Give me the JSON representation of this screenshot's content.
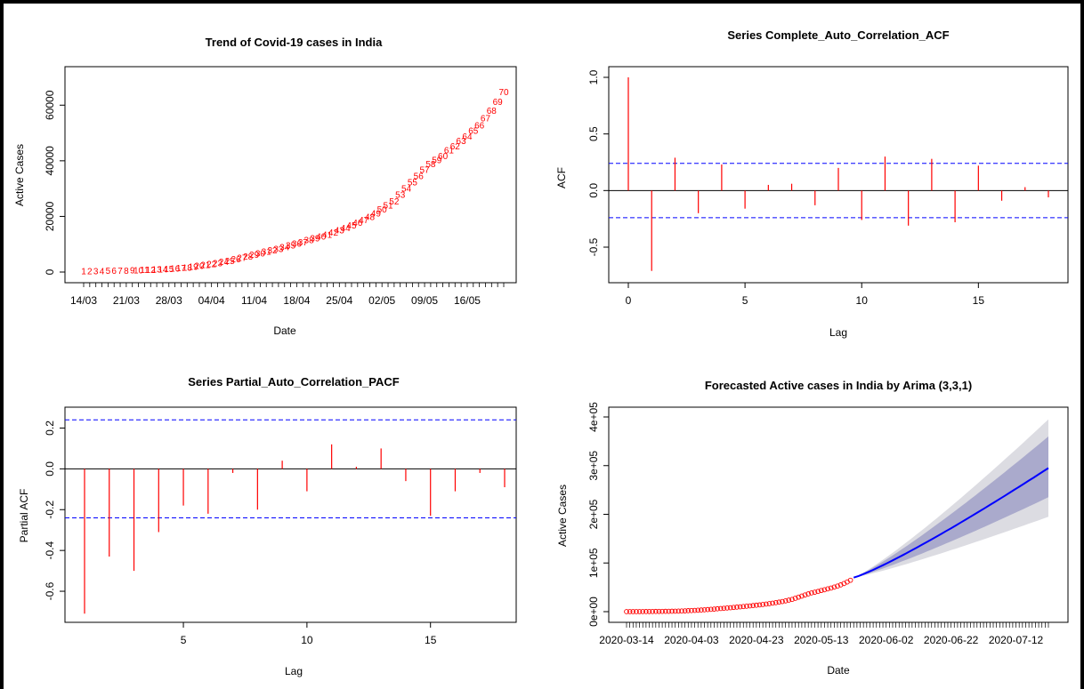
{
  "chart_data": [
    {
      "type": "scatter",
      "title": "Trend of Covid-19 cases in India",
      "xlabel": "Date",
      "ylabel": "Active Cases",
      "point_color": "#ff0000",
      "point_labels": [
        "1",
        "2",
        "3",
        "4",
        "5",
        "6",
        "7",
        "8",
        "9",
        "10",
        "11",
        "12",
        "13",
        "14",
        "15",
        "16",
        "17",
        "18",
        "19",
        "20",
        "21",
        "22",
        "23",
        "24",
        "25",
        "26",
        "27",
        "28",
        "29",
        "30",
        "31",
        "32",
        "33",
        "34",
        "35",
        "36",
        "37",
        "38",
        "39",
        "40",
        "41",
        "42",
        "43",
        "44",
        "45",
        "46",
        "47",
        "48",
        "49",
        "50",
        "51",
        "52",
        "53",
        "54",
        "55",
        "56",
        "57",
        "58",
        "59",
        "60",
        "61",
        "62",
        "63",
        "64",
        "65",
        "66",
        "67",
        "68",
        "69",
        "70"
      ],
      "x_start_date": "2020-03-14",
      "x_ticks": [
        "14/03",
        "21/03",
        "28/03",
        "04/04",
        "11/04",
        "18/04",
        "25/04",
        "02/05",
        "09/05",
        "16/05"
      ],
      "y_ticks": [
        "0",
        "20000",
        "40000",
        "60000"
      ],
      "y_tick_values": [
        0,
        20000,
        40000,
        60000
      ],
      "ylim": [
        0,
        70000
      ],
      "values": [
        84,
        90,
        100,
        110,
        126,
        150,
        200,
        260,
        330,
        400,
        480,
        560,
        650,
        750,
        860,
        1000,
        1150,
        1350,
        1650,
        2000,
        2300,
        2600,
        3000,
        3400,
        3800,
        4300,
        4800,
        5300,
        5900,
        6500,
        7000,
        7600,
        8100,
        8700,
        9300,
        9900,
        10500,
        11200,
        11800,
        12500,
        13200,
        13900,
        14700,
        15600,
        16500,
        17500,
        18500,
        19600,
        20800,
        22200,
        23700,
        25200,
        27500,
        29800,
        32000,
        34300,
        36500,
        38500,
        40000,
        41500,
        43500,
        45000,
        46800,
        48500,
        50500,
        52500,
        55000,
        57800,
        61000,
        64500
      ]
    },
    {
      "type": "bar",
      "title": "Series  Complete_Auto_Correlation_ACF",
      "xlabel": "Lag",
      "ylabel": "ACF",
      "bar_color": "#ff0000",
      "ci_color": "#0000ff",
      "ci": 0.24,
      "ylim": [
        -0.72,
        1.0
      ],
      "x_ticks": [
        "0",
        "5",
        "10",
        "15"
      ],
      "x_tick_values": [
        0,
        5,
        10,
        15
      ],
      "y_ticks": [
        "-0.5",
        "0.0",
        "0.5",
        "1.0"
      ],
      "y_tick_values": [
        -0.5,
        0.0,
        0.5,
        1.0
      ],
      "x": [
        0,
        1,
        2,
        3,
        4,
        5,
        6,
        7,
        8,
        9,
        10,
        11,
        12,
        13,
        14,
        15,
        16,
        17,
        18
      ],
      "values": [
        1.0,
        -0.71,
        0.29,
        -0.2,
        0.23,
        -0.16,
        0.05,
        0.06,
        -0.13,
        0.2,
        -0.26,
        0.3,
        -0.31,
        0.28,
        -0.28,
        0.22,
        -0.09,
        0.03,
        -0.06
      ]
    },
    {
      "type": "bar",
      "title": "Series  Partial_Auto_Correlation_PACF",
      "xlabel": "Lag",
      "ylabel": "Partial ACF",
      "bar_color": "#ff0000",
      "ci_color": "#0000ff",
      "ci": 0.24,
      "ylim": [
        -0.7,
        0.25
      ],
      "x_ticks": [
        "5",
        "10",
        "15"
      ],
      "x_tick_values": [
        5,
        10,
        15
      ],
      "y_ticks": [
        "-0.6",
        "-0.4",
        "-0.2",
        "0.0",
        "0.2"
      ],
      "y_tick_values": [
        -0.6,
        -0.4,
        -0.2,
        0.0,
        0.2
      ],
      "x": [
        1,
        2,
        3,
        4,
        5,
        6,
        7,
        8,
        9,
        10,
        11,
        12,
        13,
        14,
        15,
        16,
        17,
        18
      ],
      "values": [
        -0.71,
        -0.43,
        -0.5,
        -0.31,
        -0.18,
        -0.22,
        -0.02,
        -0.2,
        0.04,
        -0.11,
        0.12,
        0.01,
        0.1,
        -0.06,
        -0.23,
        -0.11,
        -0.02,
        -0.09
      ]
    },
    {
      "type": "line",
      "title": "Forecasted Active cases in India by Arima (3,3,1)",
      "xlabel": "Date",
      "ylabel": "Active Cases",
      "observed_color": "#ff0000",
      "forecast_color": "#0000ff",
      "band80_color": "#aaaacc",
      "band95_color": "#dcdce2",
      "x_ticks": [
        "2020-03-14",
        "2020-04-03",
        "2020-04-23",
        "2020-05-13",
        "2020-06-02",
        "2020-06-22",
        "2020-07-12"
      ],
      "x_tick_values": [
        "2020-03-14",
        "2020-04-03",
        "2020-04-23",
        "2020-05-13",
        "2020-06-02",
        "2020-06-22",
        "2020-07-12"
      ],
      "y_ticks": [
        "0e+00",
        "1e+05",
        "2e+05",
        "3e+05",
        "4e+05"
      ],
      "y_tick_values": [
        0,
        100000,
        200000,
        300000,
        400000
      ],
      "ylim": [
        0,
        400000
      ],
      "observed": {
        "start_date": "2020-03-14",
        "values": [
          84,
          90,
          100,
          110,
          126,
          150,
          200,
          260,
          330,
          400,
          480,
          560,
          650,
          750,
          860,
          1000,
          1150,
          1350,
          1650,
          2000,
          2300,
          2600,
          3000,
          3400,
          3800,
          4300,
          4800,
          5300,
          5900,
          6500,
          7000,
          7600,
          8100,
          8700,
          9300,
          9900,
          10500,
          11200,
          11800,
          12500,
          13200,
          13900,
          14700,
          15600,
          16500,
          17500,
          18500,
          19600,
          20800,
          22200,
          23700,
          25200,
          27500,
          29800,
          32000,
          34300,
          36500,
          38500,
          40000,
          41500,
          43500,
          45000,
          46800,
          48500,
          50500,
          52500,
          55000,
          57800,
          61000,
          64500
        ]
      },
      "forecast": {
        "start_date": "2020-05-23",
        "end_date": "2020-07-22",
        "start_value": 70000,
        "end_value": 295000,
        "lo80_end": 235000,
        "hi80_end": 360000,
        "lo95_end": 195000,
        "hi95_end": 395000
      }
    }
  ]
}
